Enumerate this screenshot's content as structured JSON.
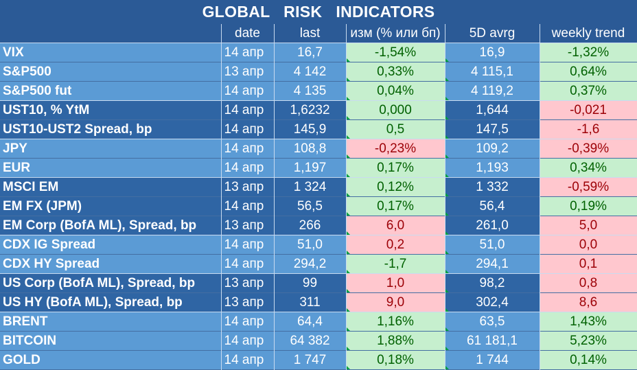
{
  "title": "GLOBAL   RISK   INDICATORS",
  "headers": [
    "",
    "date",
    "last",
    "изм (% или бп)",
    "5D avrg",
    "weekly trend"
  ],
  "rows": [
    {
      "name": "VIX",
      "date": "14 апр",
      "last": "16,7",
      "change": "-1,54%",
      "change_sign": "pos",
      "avg5d": "16,9",
      "trend": "-1,32%",
      "trend_sign": "pos",
      "shade": "light",
      "group_end": false
    },
    {
      "name": "S&P500",
      "date": "13 апр",
      "last": "4 142",
      "change": "0,33%",
      "change_sign": "pos",
      "avg5d": "4 115,1",
      "trend": "0,64%",
      "trend_sign": "pos",
      "shade": "light",
      "group_end": false
    },
    {
      "name": "S&P500 fut",
      "date": "14 апр",
      "last": "4 135",
      "change": "0,04%",
      "change_sign": "pos",
      "avg5d": "4 119,2",
      "trend": "0,37%",
      "trend_sign": "pos",
      "shade": "light",
      "group_end": true
    },
    {
      "name": "UST10, % YtM",
      "date": "14 апр",
      "last": "1,6232",
      "change": "0,000",
      "change_sign": "pos",
      "avg5d": "1,644",
      "trend": "-0,021",
      "trend_sign": "neg",
      "shade": "dark",
      "group_end": false
    },
    {
      "name": "UST10-UST2 Spread, bp",
      "date": "14 апр",
      "last": "145,9",
      "change": "0,5",
      "change_sign": "pos",
      "avg5d": "147,5",
      "trend": "-1,6",
      "trend_sign": "neg",
      "shade": "dark",
      "group_end": true
    },
    {
      "name": "JPY",
      "date": "14 апр",
      "last": "108,8",
      "change": "-0,23%",
      "change_sign": "neg",
      "avg5d": "109,2",
      "trend": "-0,39%",
      "trend_sign": "neg",
      "shade": "light",
      "group_end": false
    },
    {
      "name": "EUR",
      "date": "14 апр",
      "last": "1,197",
      "change": "0,17%",
      "change_sign": "pos",
      "avg5d": "1,193",
      "trend": "0,34%",
      "trend_sign": "pos",
      "shade": "light",
      "group_end": true
    },
    {
      "name": "MSCI EM",
      "date": "13 апр",
      "last": "1 324",
      "change": "0,12%",
      "change_sign": "pos",
      "avg5d": "1 332",
      "trend": "-0,59%",
      "trend_sign": "neg",
      "shade": "dark",
      "group_end": false
    },
    {
      "name": "EM FX (JPM)",
      "date": "14 апр",
      "last": "56,5",
      "change": "0,17%",
      "change_sign": "pos",
      "avg5d": "56,4",
      "trend": "0,19%",
      "trend_sign": "pos",
      "shade": "dark",
      "group_end": false
    },
    {
      "name": "EM Corp (BofA ML), Spread, bp",
      "date": "13 апр",
      "last": "266",
      "change": "6,0",
      "change_sign": "neg",
      "avg5d": "261,0",
      "trend": "5,0",
      "trend_sign": "neg",
      "shade": "dark",
      "group_end": true
    },
    {
      "name": "CDX IG Spread",
      "date": "14 апр",
      "last": "51,0",
      "change": "0,2",
      "change_sign": "neg",
      "avg5d": "51,0",
      "trend": "0,0",
      "trend_sign": "neg",
      "shade": "light",
      "group_end": false
    },
    {
      "name": "CDX HY Spread",
      "date": "14 апр",
      "last": "294,2",
      "change": "-1,7",
      "change_sign": "pos",
      "avg5d": "294,1",
      "trend": "0,1",
      "trend_sign": "neg",
      "shade": "light",
      "group_end": true
    },
    {
      "name": "US Corp (BofA ML), Spread, bp",
      "date": "13 апр",
      "last": "99",
      "change": "1,0",
      "change_sign": "neg",
      "avg5d": "98,2",
      "trend": "0,8",
      "trend_sign": "neg",
      "shade": "dark",
      "group_end": false
    },
    {
      "name": "US HY (BofA ML), Spread, bp",
      "date": "13 апр",
      "last": "311",
      "change": "9,0",
      "change_sign": "neg",
      "avg5d": "302,4",
      "trend": "8,6",
      "trend_sign": "neg",
      "shade": "dark",
      "group_end": true
    },
    {
      "name": "BRENT",
      "date": "14 апр",
      "last": "64,4",
      "change": "1,16%",
      "change_sign": "pos",
      "avg5d": "63,5",
      "trend": "1,43%",
      "trend_sign": "pos",
      "shade": "light",
      "group_end": false
    },
    {
      "name": "BITCOIN",
      "date": "14 апр",
      "last": "64 382",
      "change": "1,88%",
      "change_sign": "pos",
      "avg5d": "61 181,1",
      "trend": "5,23%",
      "trend_sign": "pos",
      "shade": "light",
      "group_end": false
    },
    {
      "name": "GOLD",
      "date": "14 апр",
      "last": "1 747",
      "change": "0,18%",
      "change_sign": "pos",
      "avg5d": "1 744",
      "trend": "0,14%",
      "trend_sign": "pos",
      "shade": "light",
      "group_end": false
    }
  ],
  "colors": {
    "header_bg": "#2b5a96",
    "row_light": "#5b9bd5",
    "row_dark": "#2f65a4",
    "positive_bg": "#c6efce",
    "positive_text": "#006100",
    "negative_bg": "#ffc7ce",
    "negative_text": "#9c0006"
  }
}
